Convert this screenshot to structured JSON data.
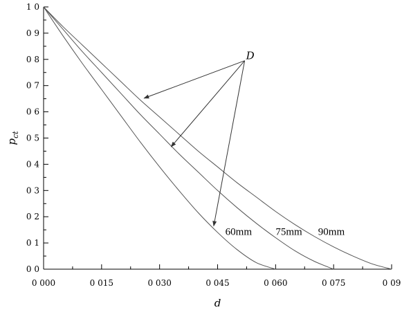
{
  "chart_data": {
    "type": "line",
    "xlabel": "d",
    "ylabel": "p",
    "ylabel_sub": "ct",
    "xlim": [
      0,
      0.09
    ],
    "ylim": [
      0,
      1.0
    ],
    "x_ticks": [
      0,
      0.015,
      0.03,
      0.045,
      0.06,
      0.075,
      0.09
    ],
    "x_tick_labels": [
      "0 000",
      "0 015",
      "0 030",
      "0 045",
      "0 060",
      "0 075",
      "0 09"
    ],
    "y_ticks": [
      0,
      0.1,
      0.2,
      0.3,
      0.4,
      0.5,
      0.6,
      0.7,
      0.8,
      0.9,
      1.0
    ],
    "y_tick_labels": [
      "0 0",
      "0 1",
      "0 2",
      "0 3",
      "0 4",
      "0 5",
      "0 6",
      "0 7",
      "0 8",
      "0 9",
      "1 0"
    ],
    "grid": false,
    "series": [
      {
        "name": "60mm",
        "x": [
          0,
          0.005,
          0.01,
          0.015,
          0.02,
          0.025,
          0.03,
          0.035,
          0.04,
          0.045,
          0.05,
          0.055,
          0.06
        ],
        "y": [
          1.0,
          0.89,
          0.785,
          0.685,
          0.585,
          0.485,
          0.39,
          0.3,
          0.215,
          0.14,
          0.075,
          0.025,
          0.0
        ]
      },
      {
        "name": "75mm",
        "x": [
          0,
          0.005,
          0.01,
          0.015,
          0.02,
          0.025,
          0.03,
          0.035,
          0.04,
          0.045,
          0.05,
          0.055,
          0.06,
          0.065,
          0.07,
          0.075
        ],
        "y": [
          1.0,
          0.915,
          0.83,
          0.75,
          0.67,
          0.59,
          0.515,
          0.44,
          0.37,
          0.3,
          0.235,
          0.175,
          0.12,
          0.07,
          0.03,
          0.0
        ]
      },
      {
        "name": "90mm",
        "x": [
          0,
          0.005,
          0.01,
          0.015,
          0.02,
          0.025,
          0.03,
          0.035,
          0.04,
          0.045,
          0.05,
          0.055,
          0.06,
          0.065,
          0.07,
          0.075,
          0.08,
          0.085,
          0.09
        ],
        "y": [
          1.0,
          0.925,
          0.855,
          0.785,
          0.715,
          0.645,
          0.58,
          0.515,
          0.45,
          0.39,
          0.33,
          0.275,
          0.22,
          0.17,
          0.125,
          0.085,
          0.05,
          0.02,
          0.0
        ]
      }
    ],
    "annotations": [
      {
        "text": "D",
        "at": [
          0.052,
          0.795
        ],
        "arrows_to": [
          [
            0.026,
            0.652
          ],
          [
            0.033,
            0.467
          ],
          [
            0.044,
            0.165
          ]
        ]
      }
    ],
    "series_label_positions": [
      [
        0.047,
        0.13
      ],
      [
        0.06,
        0.13
      ],
      [
        0.071,
        0.13
      ]
    ]
  }
}
